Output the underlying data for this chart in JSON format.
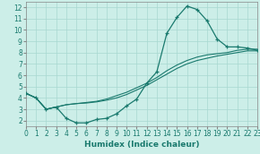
{
  "background_color": "#cceee8",
  "grid_color": "#a8d8d0",
  "line_color": "#1a7a6e",
  "xlim": [
    0,
    23
  ],
  "ylim": [
    1.5,
    12.5
  ],
  "xticks": [
    0,
    1,
    2,
    3,
    4,
    5,
    6,
    7,
    8,
    9,
    10,
    11,
    12,
    13,
    14,
    15,
    16,
    17,
    18,
    19,
    20,
    21,
    22,
    23
  ],
  "yticks": [
    2,
    3,
    4,
    5,
    6,
    7,
    8,
    9,
    10,
    11,
    12
  ],
  "xlabel": "Humidex (Indice chaleur)",
  "curve1_x": [
    0,
    1,
    2,
    3,
    4,
    5,
    6,
    7,
    8,
    9,
    10,
    11,
    12,
    13,
    14,
    15,
    16,
    17,
    18,
    19,
    20,
    21,
    22,
    23
  ],
  "curve1_y": [
    4.4,
    4.0,
    3.0,
    3.2,
    2.2,
    1.8,
    1.8,
    2.1,
    2.2,
    2.6,
    3.3,
    3.9,
    5.3,
    6.3,
    9.7,
    11.1,
    12.1,
    11.8,
    10.8,
    9.2,
    8.5,
    8.5,
    8.4,
    8.2
  ],
  "curve2_x": [
    0,
    1,
    2,
    3,
    4,
    5,
    6,
    7,
    8,
    9,
    10,
    11,
    12,
    13,
    14,
    15,
    16,
    17,
    18,
    19,
    20,
    21,
    22,
    23
  ],
  "curve2_y": [
    4.4,
    4.0,
    3.0,
    3.2,
    3.4,
    3.5,
    3.6,
    3.7,
    3.9,
    4.2,
    4.5,
    4.9,
    5.3,
    5.8,
    6.4,
    6.9,
    7.3,
    7.6,
    7.8,
    7.9,
    8.0,
    8.2,
    8.3,
    8.3
  ],
  "curve3_x": [
    0,
    1,
    2,
    3,
    4,
    5,
    6,
    7,
    8,
    9,
    10,
    11,
    12,
    13,
    14,
    15,
    16,
    17,
    18,
    19,
    20,
    21,
    22,
    23
  ],
  "curve3_y": [
    4.4,
    4.0,
    3.0,
    3.2,
    3.4,
    3.5,
    3.55,
    3.65,
    3.8,
    4.0,
    4.3,
    4.7,
    5.1,
    5.6,
    6.1,
    6.6,
    7.0,
    7.3,
    7.5,
    7.7,
    7.85,
    8.0,
    8.15,
    8.15
  ]
}
